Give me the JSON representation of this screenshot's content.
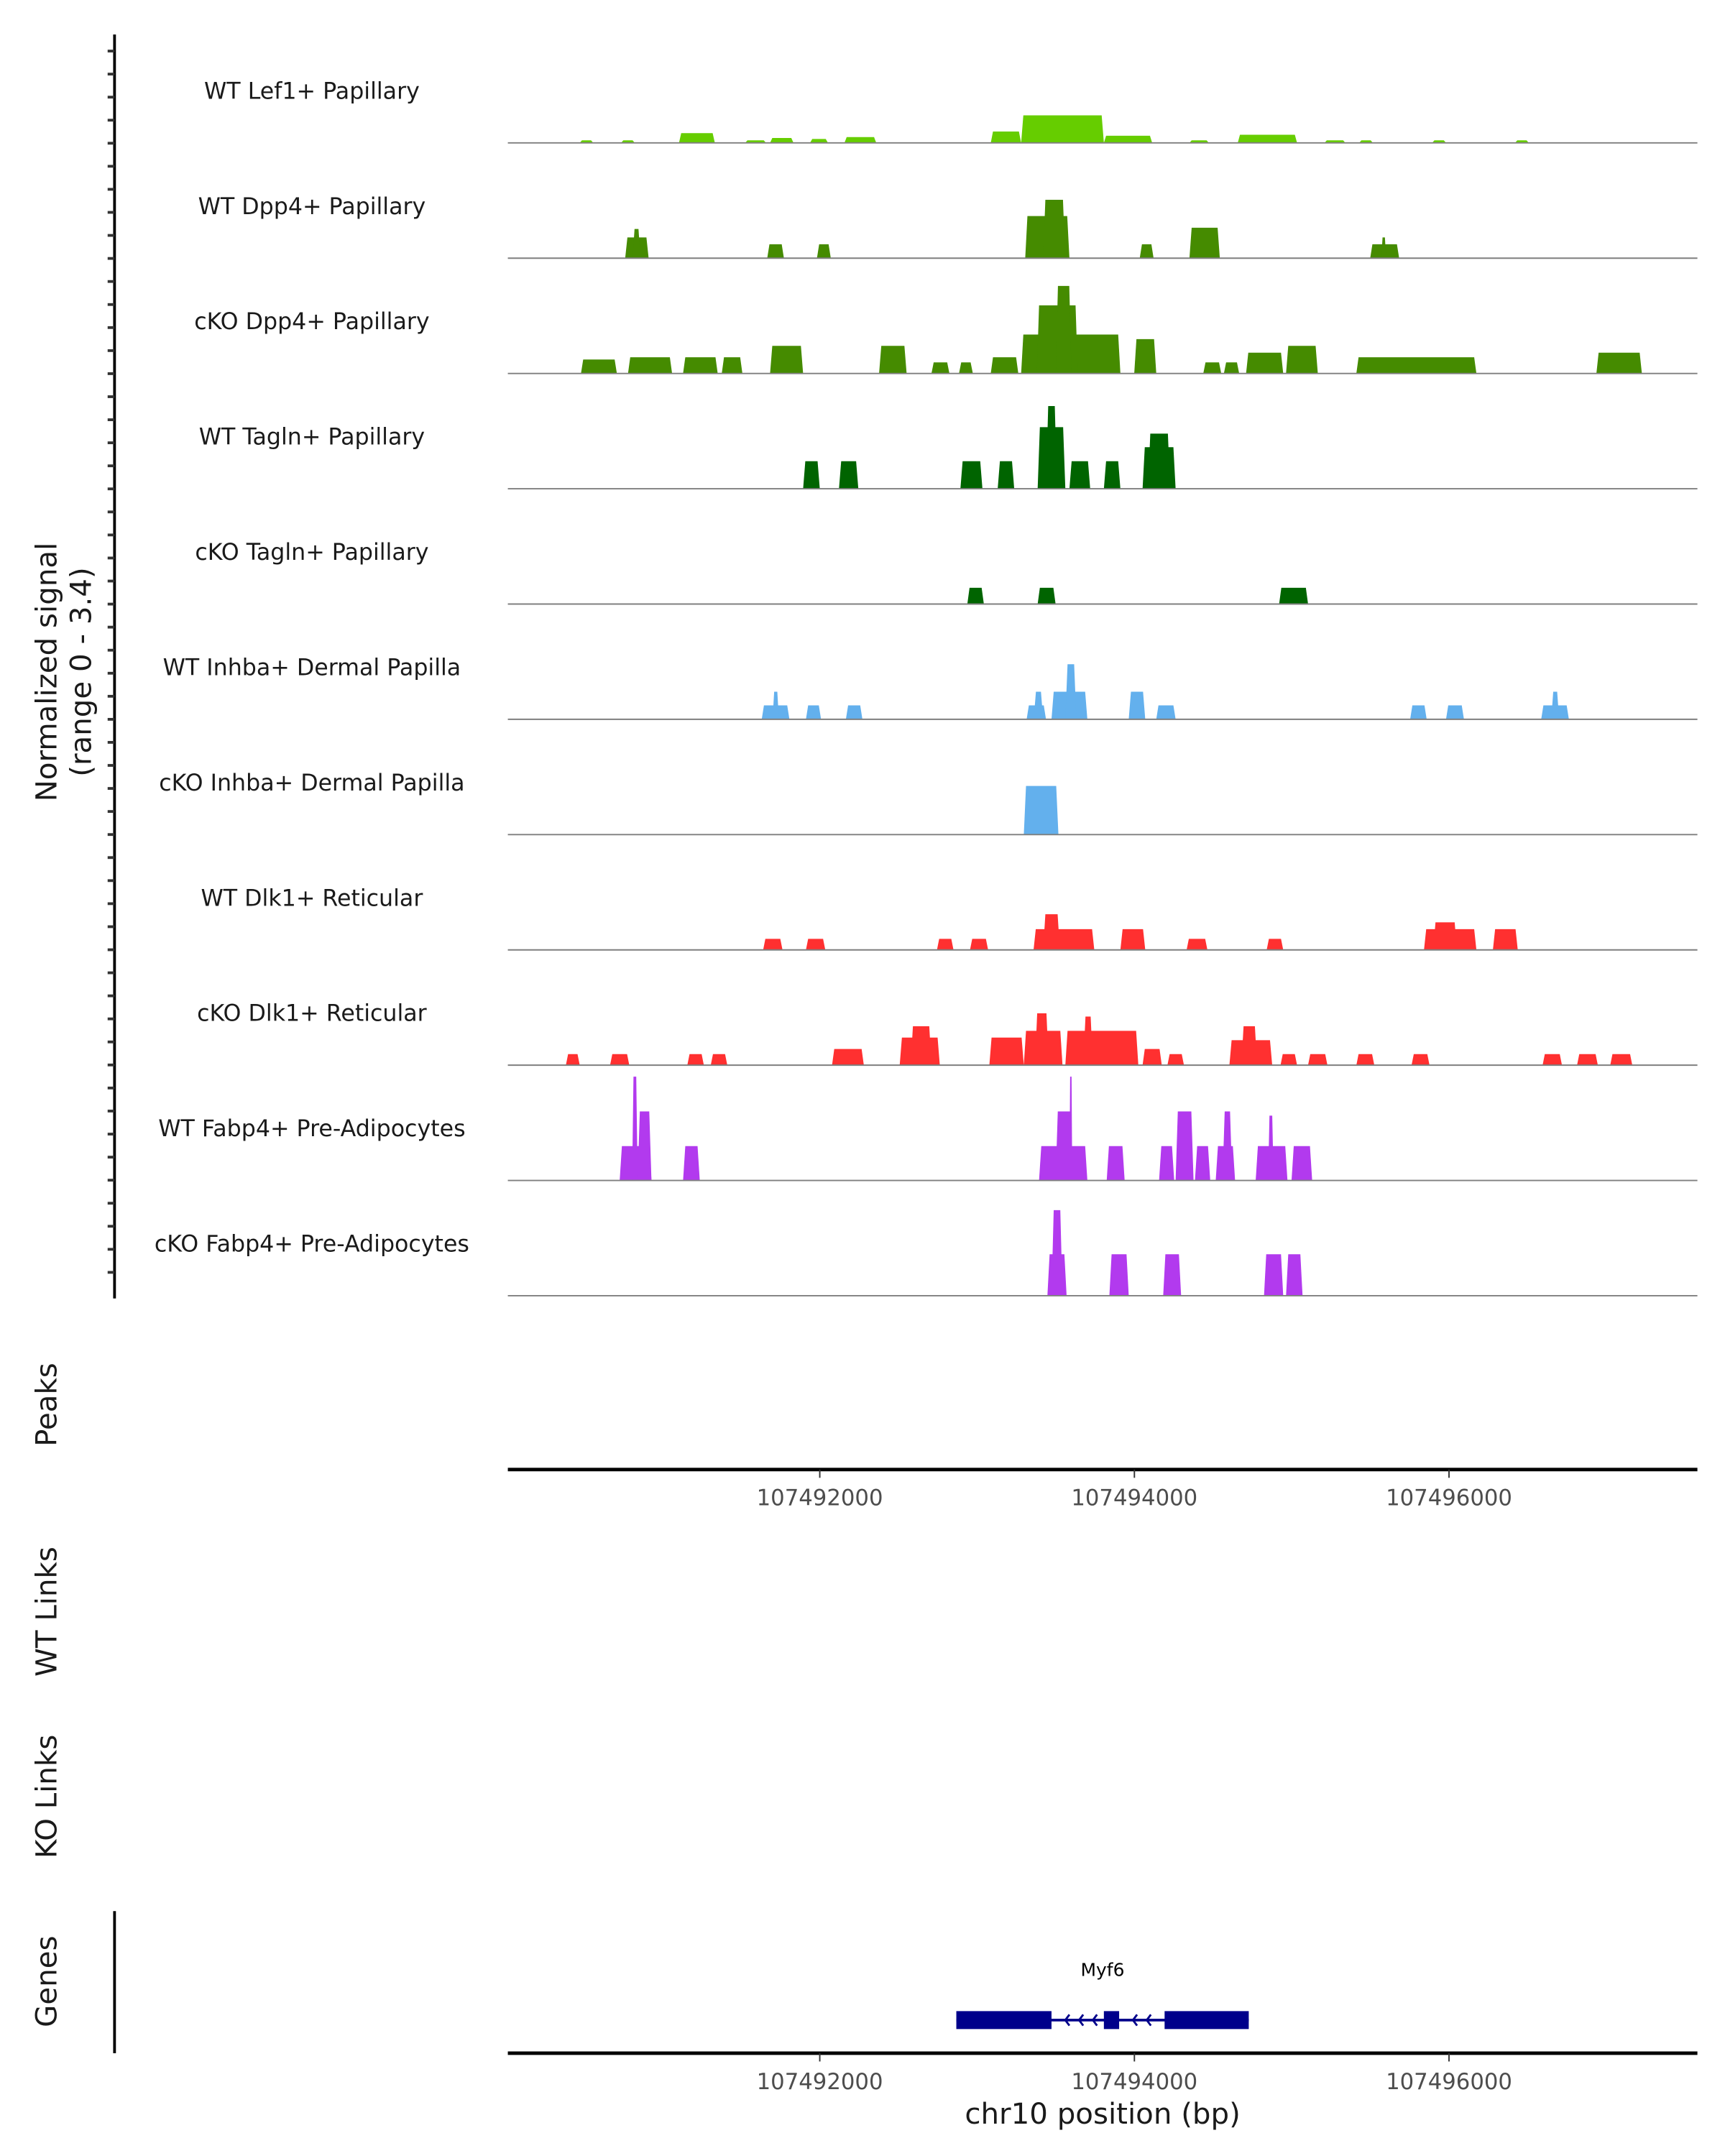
{
  "chart_data": {
    "type": "area",
    "title": "",
    "xlabel": "chr10 position (bp)",
    "ylabel": "Normalized signal",
    "ylabel_range": "(range 0 - 3.4)",
    "ylim": [
      0,
      3.4
    ],
    "xlim": [
      107490017,
      107497579
    ],
    "xticks": [
      107492000,
      107494000,
      107496000
    ],
    "xtick_labels": [
      "107492000",
      "107494000",
      "107496000"
    ],
    "panel_labels": {
      "peaks": "Peaks",
      "wt_links": "WT Links",
      "ko_links": "KO Links",
      "genes": "Genes"
    },
    "genes": [
      {
        "name": "Myf6",
        "strand": "-",
        "color": "#00008B",
        "start": 107492868,
        "end": 107494727,
        "exons": [
          [
            107492868,
            107493473
          ],
          [
            107493806,
            107493903
          ],
          [
            107494192,
            107494727
          ]
        ]
      }
    ],
    "tracks": [
      {
        "name": "WT Lef1+ Papillary",
        "color": "#66CD00",
        "segments": [
          [
            107490474,
            107490560,
            0.08
          ],
          [
            107490737,
            107490824,
            0.08
          ],
          [
            107491105,
            107491333,
            0.3
          ],
          [
            107491526,
            107491658,
            0.08
          ],
          [
            107491684,
            107491833,
            0.15
          ],
          [
            107491938,
            107492052,
            0.12
          ],
          [
            107492157,
            107492359,
            0.18
          ],
          [
            107493087,
            107493280,
            0.35
          ],
          [
            107493280,
            107493806,
            0.85
          ],
          [
            107493806,
            107494113,
            0.22
          ],
          [
            107494350,
            107494473,
            0.08
          ],
          [
            107494657,
            107495034,
            0.25
          ],
          [
            107495209,
            107495341,
            0.08
          ],
          [
            107495429,
            107495516,
            0.08
          ],
          [
            107495893,
            107495981,
            0.08
          ],
          [
            107496420,
            107496507,
            0.08
          ]
        ]
      },
      {
        "name": "WT Dpp4+ Papillary",
        "color": "#458B00",
        "segments": [
          [
            107490763,
            107490912,
            0.64
          ],
          [
            107490810,
            107490860,
            0.9
          ],
          [
            107491666,
            107491772,
            0.43
          ],
          [
            107491982,
            107492070,
            0.43
          ],
          [
            107493306,
            107493587,
            1.3
          ],
          [
            107493420,
            107493560,
            1.8
          ],
          [
            107494034,
            107494122,
            0.43
          ],
          [
            107494350,
            107494543,
            0.94
          ],
          [
            107495499,
            107495683,
            0.43
          ],
          [
            107495570,
            107495600,
            0.64
          ]
        ]
      },
      {
        "name": "cKO Dpp4+ Papillary",
        "color": "#458B00",
        "segments": [
          [
            107490482,
            107490710,
            0.43
          ],
          [
            107490781,
            107491061,
            0.5
          ],
          [
            107491131,
            107491351,
            0.5
          ],
          [
            107491377,
            107491508,
            0.5
          ],
          [
            107491684,
            107491894,
            0.85
          ],
          [
            107492377,
            107492552,
            0.85
          ],
          [
            107492710,
            107492824,
            0.34
          ],
          [
            107492885,
            107492973,
            0.34
          ],
          [
            107493087,
            107493262,
            0.5
          ],
          [
            107493280,
            107493911,
            1.2
          ],
          [
            107493380,
            107493640,
            2.1
          ],
          [
            107493500,
            107493600,
            2.7
          ],
          [
            107493999,
            107494139,
            1.06
          ],
          [
            107494438,
            107494552,
            0.34
          ],
          [
            107494569,
            107494666,
            0.34
          ],
          [
            107494710,
            107494946,
            0.64
          ],
          [
            107494964,
            107495166,
            0.85
          ],
          [
            107495411,
            107496174,
            0.5
          ],
          [
            107496937,
            107497226,
            0.64
          ]
        ]
      },
      {
        "name": "WT Tagln+ Papillary",
        "color": "#006400",
        "segments": [
          [
            107491894,
            107492000,
            0.85
          ],
          [
            107492122,
            107492245,
            0.85
          ],
          [
            107492894,
            107493034,
            0.85
          ],
          [
            107493131,
            107493236,
            0.85
          ],
          [
            107493385,
            107493561,
            1.9
          ],
          [
            107493438,
            107493508,
            2.55
          ],
          [
            107493587,
            107493719,
            0.85
          ],
          [
            107493806,
            107493911,
            0.85
          ],
          [
            107494052,
            107494262,
            1.28
          ],
          [
            107494087,
            107494227,
            1.7
          ]
        ]
      },
      {
        "name": "cKO Tagln+ Papillary",
        "color": "#006400",
        "segments": [
          [
            107492938,
            107493043,
            0.5
          ],
          [
            107493385,
            107493499,
            0.5
          ],
          [
            107494920,
            107495104,
            0.5
          ]
        ]
      },
      {
        "name": "WT Inhba+ Dermal Papilla",
        "color": "#63B0ED",
        "segments": [
          [
            107491631,
            107491807,
            0.43
          ],
          [
            107491700,
            107491740,
            0.85
          ],
          [
            107491912,
            107492008,
            0.43
          ],
          [
            107492166,
            107492271,
            0.43
          ],
          [
            107493315,
            107493438,
            0.43
          ],
          [
            107493360,
            107493420,
            0.85
          ],
          [
            107493473,
            107493701,
            0.85
          ],
          [
            107493561,
            107493631,
            1.7
          ],
          [
            107493964,
            107494069,
            0.85
          ],
          [
            107494139,
            107494262,
            0.43
          ],
          [
            107495753,
            107495858,
            0.43
          ],
          [
            107495981,
            107496095,
            0.43
          ],
          [
            107496586,
            107496762,
            0.43
          ],
          [
            107496650,
            107496700,
            0.85
          ]
        ]
      },
      {
        "name": "cKO Inhba+ Dermal Papilla",
        "color": "#63B0ED",
        "segments": [
          [
            107493297,
            107493517,
            1.5
          ]
        ]
      },
      {
        "name": "WT Dlk1+ Reticular",
        "color": "#FF3030",
        "segments": [
          [
            107491640,
            107491763,
            0.34
          ],
          [
            107491912,
            107492035,
            0.34
          ],
          [
            107492745,
            107492850,
            0.34
          ],
          [
            107492955,
            107493070,
            0.34
          ],
          [
            107493359,
            107493745,
            0.64
          ],
          [
            107493420,
            107493526,
            1.1
          ],
          [
            107493911,
            107494069,
            0.64
          ],
          [
            107494332,
            107494464,
            0.34
          ],
          [
            107494841,
            107494946,
            0.34
          ],
          [
            107495841,
            107496174,
            0.64
          ],
          [
            107495900,
            107496050,
            0.85
          ],
          [
            107496279,
            107496437,
            0.64
          ]
        ]
      },
      {
        "name": "cKO Dlk1+ Reticular",
        "color": "#FF3030",
        "segments": [
          [
            107490386,
            107490474,
            0.34
          ],
          [
            107490667,
            107490789,
            0.34
          ],
          [
            107491158,
            107491263,
            0.34
          ],
          [
            107491307,
            107491412,
            0.34
          ],
          [
            107492078,
            107492280,
            0.5
          ],
          [
            107492508,
            107492763,
            0.85
          ],
          [
            107492578,
            107492710,
            1.2
          ],
          [
            107493078,
            107493297,
            0.85
          ],
          [
            107493297,
            107493543,
            1.06
          ],
          [
            107493368,
            107493455,
            1.6
          ],
          [
            107493561,
            107494025,
            1.06
          ],
          [
            107493675,
            107493736,
            1.5
          ],
          [
            107494052,
            107494174,
            0.5
          ],
          [
            107494210,
            107494315,
            0.34
          ],
          [
            107494604,
            107494876,
            0.77
          ],
          [
            107494680,
            107494780,
            1.2
          ],
          [
            107494929,
            107495034,
            0.34
          ],
          [
            107495104,
            107495227,
            0.34
          ],
          [
            107495411,
            107495525,
            0.34
          ],
          [
            107495762,
            107495876,
            0.34
          ],
          [
            107496595,
            107496718,
            0.34
          ],
          [
            107496814,
            107496946,
            0.34
          ],
          [
            107497025,
            107497165,
            0.34
          ]
        ]
      },
      {
        "name": "WT Fabp4+ Pre-Adipocytes",
        "color": "#B23AEE",
        "segments": [
          [
            107490728,
            107490930,
            1.06
          ],
          [
            107490842,
            107490930,
            2.13
          ],
          [
            107490807,
            107490842,
            3.2
          ],
          [
            107491131,
            107491237,
            1.06
          ],
          [
            107493394,
            107493701,
            1.06
          ],
          [
            107493499,
            107493605,
            2.13
          ],
          [
            107493587,
            107493605,
            3.2
          ],
          [
            107493824,
            107493938,
            1.06
          ],
          [
            107494157,
            107494253,
            1.06
          ],
          [
            107494262,
            107494376,
            2.13
          ],
          [
            107494385,
            107494482,
            1.06
          ],
          [
            107494517,
            107494640,
            1.06
          ],
          [
            107494560,
            107494622,
            2.13
          ],
          [
            107494771,
            107494973,
            1.06
          ],
          [
            107494850,
            107494885,
            2.0
          ],
          [
            107494999,
            107495130,
            1.06
          ]
        ]
      },
      {
        "name": "cKO Fabp4+ Pre-Adipocytes",
        "color": "#B23AEE",
        "segments": [
          [
            107493447,
            107493569,
            1.28
          ],
          [
            107493473,
            107493543,
            2.64
          ],
          [
            107493841,
            107493964,
            1.28
          ],
          [
            107494183,
            107494297,
            1.28
          ],
          [
            107494824,
            107494946,
            1.28
          ],
          [
            107494964,
            107495069,
            1.28
          ]
        ]
      }
    ]
  }
}
